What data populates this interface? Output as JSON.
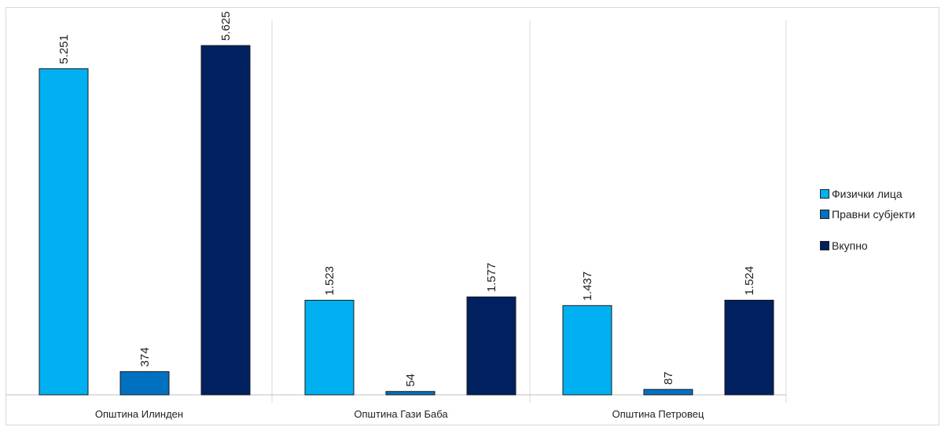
{
  "chart_data": {
    "type": "bar",
    "categories": [
      "Општина Илинден",
      "Општина Гази Баба",
      "Општина Петровец"
    ],
    "series": [
      {
        "name": "Физички лица",
        "values": [
          5251,
          1523,
          1437
        ],
        "labels": [
          "5.251",
          "1.523",
          "1.437"
        ]
      },
      {
        "name": "Правни субјекти",
        "values": [
          374,
          54,
          87
        ],
        "labels": [
          "374",
          "54",
          "87"
        ]
      },
      {
        "name": "Вкупно",
        "values": [
          5625,
          1577,
          1524
        ],
        "labels": [
          "5.625",
          "1.577",
          "1.524"
        ]
      }
    ],
    "ylim": [
      0,
      5625
    ],
    "legend_position": "right",
    "grid": false
  },
  "colors": {
    "series": [
      "#00b0f0",
      "#0070c0",
      "#002060"
    ],
    "axis": "#bfbfbf",
    "separator": "#d9d9d9",
    "text": "#222222"
  }
}
